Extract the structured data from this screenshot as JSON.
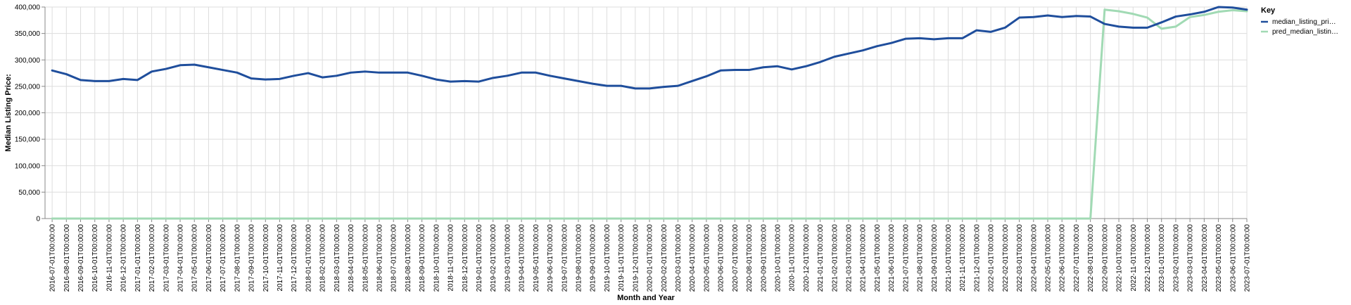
{
  "chart_data": {
    "type": "line",
    "xlabel": "Month and Year",
    "ylabel": "Median Listing Price:",
    "ylim": [
      0,
      400000
    ],
    "yticks": [
      "0",
      "50,000",
      "100,000",
      "150,000",
      "200,000",
      "250,000",
      "300,000",
      "350,000",
      "400,000"
    ],
    "grid": true,
    "legend": {
      "title": "Key",
      "placement": "top-right",
      "entries": [
        "median_listing_pri…",
        "pred_median_listin…"
      ]
    },
    "x": [
      "2016-07-01T00:00:00",
      "2016-08-01T00:00:00",
      "2016-09-01T00:00:00",
      "2016-10-01T00:00:00",
      "2016-11-01T00:00:00",
      "2016-12-01T00:00:00",
      "2017-01-01T00:00:00",
      "2017-02-01T00:00:00",
      "2017-03-01T00:00:00",
      "2017-04-01T00:00:00",
      "2017-05-01T00:00:00",
      "2017-06-01T00:00:00",
      "2017-07-01T00:00:00",
      "2017-08-01T00:00:00",
      "2017-09-01T00:00:00",
      "2017-10-01T00:00:00",
      "2017-11-01T00:00:00",
      "2017-12-01T00:00:00",
      "2018-01-01T00:00:00",
      "2018-02-01T00:00:00",
      "2018-03-01T00:00:00",
      "2018-04-01T00:00:00",
      "2018-05-01T00:00:00",
      "2018-06-01T00:00:00",
      "2018-07-01T00:00:00",
      "2018-08-01T00:00:00",
      "2018-09-01T00:00:00",
      "2018-10-01T00:00:00",
      "2018-11-01T00:00:00",
      "2018-12-01T00:00:00",
      "2019-01-01T00:00:00",
      "2019-02-01T00:00:00",
      "2019-03-01T00:00:00",
      "2019-04-01T00:00:00",
      "2019-05-01T00:00:00",
      "2019-06-01T00:00:00",
      "2019-07-01T00:00:00",
      "2019-08-01T00:00:00",
      "2019-09-01T00:00:00",
      "2019-10-01T00:00:00",
      "2019-11-01T00:00:00",
      "2019-12-01T00:00:00",
      "2020-01-01T00:00:00",
      "2020-02-01T00:00:00",
      "2020-03-01T00:00:00",
      "2020-04-01T00:00:00",
      "2020-05-01T00:00:00",
      "2020-06-01T00:00:00",
      "2020-07-01T00:00:00",
      "2020-08-01T00:00:00",
      "2020-09-01T00:00:00",
      "2020-10-01T00:00:00",
      "2020-11-01T00:00:00",
      "2020-12-01T00:00:00",
      "2021-01-01T00:00:00",
      "2021-02-01T00:00:00",
      "2021-03-01T00:00:00",
      "2021-04-01T00:00:00",
      "2021-05-01T00:00:00",
      "2021-06-01T00:00:00",
      "2021-07-01T00:00:00",
      "2021-08-01T00:00:00",
      "2021-09-01T00:00:00",
      "2021-10-01T00:00:00",
      "2021-11-01T00:00:00",
      "2021-12-01T00:00:00",
      "2022-01-01T00:00:00",
      "2022-02-01T00:00:00",
      "2022-03-01T00:00:00",
      "2022-04-01T00:00:00",
      "2022-05-01T00:00:00",
      "2022-06-01T00:00:00",
      "2022-07-01T00:00:00",
      "2022-08-01T00:00:00",
      "2022-09-01T00:00:00",
      "2022-10-01T00:00:00",
      "2022-11-01T00:00:00",
      "2022-12-01T00:00:00",
      "2023-01-01T00:00:00",
      "2023-02-01T00:00:00",
      "2023-03-01T00:00:00",
      "2023-04-01T00:00:00",
      "2023-05-01T00:00:00",
      "2023-06-01T00:00:00",
      "2023-07-01T00:00:00"
    ],
    "series": [
      {
        "name": "median_listing_pri…",
        "color": "#1f4e9c",
        "values": [
          280000,
          273000,
          262000,
          260000,
          260000,
          264000,
          262000,
          278000,
          283000,
          290000,
          291000,
          286000,
          281000,
          276000,
          265000,
          263000,
          264000,
          270000,
          275000,
          267000,
          270000,
          276000,
          278000,
          276000,
          276000,
          276000,
          270000,
          263000,
          259000,
          260000,
          259000,
          266000,
          270000,
          276000,
          276000,
          270000,
          265000,
          260000,
          255000,
          251000,
          251000,
          246000,
          246000,
          249000,
          251000,
          260000,
          269000,
          280000,
          281000,
          281000,
          286000,
          288000,
          282000,
          288000,
          296000,
          306000,
          312000,
          318000,
          326000,
          332000,
          340000,
          341000,
          339000,
          341000,
          341000,
          356000,
          353000,
          361000,
          380000,
          381000,
          384000,
          381000,
          383000,
          382000,
          368000,
          363000,
          361000,
          361000,
          371000,
          382000,
          386000,
          391000,
          400000,
          399000,
          395000
        ]
      },
      {
        "name": "pred_median_listin…",
        "color": "#a1dab4",
        "values": [
          0,
          0,
          0,
          0,
          0,
          0,
          0,
          0,
          0,
          0,
          0,
          0,
          0,
          0,
          0,
          0,
          0,
          0,
          0,
          0,
          0,
          0,
          0,
          0,
          0,
          0,
          0,
          0,
          0,
          0,
          0,
          0,
          0,
          0,
          0,
          0,
          0,
          0,
          0,
          0,
          0,
          0,
          0,
          0,
          0,
          0,
          0,
          0,
          0,
          0,
          0,
          0,
          0,
          0,
          0,
          0,
          0,
          0,
          0,
          0,
          0,
          0,
          0,
          0,
          0,
          0,
          0,
          0,
          0,
          0,
          0,
          0,
          0,
          0,
          395000,
          392000,
          387000,
          380000,
          359000,
          363000,
          381000,
          385000,
          391000,
          394000,
          392000
        ]
      }
    ]
  }
}
